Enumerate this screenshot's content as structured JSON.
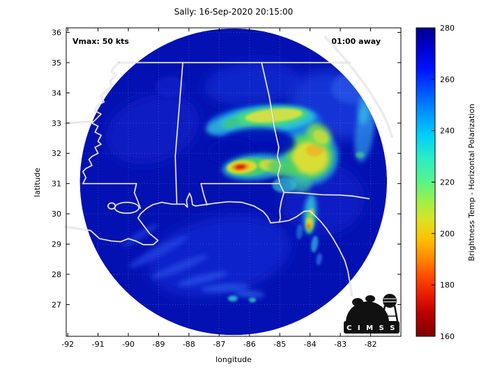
{
  "title": "Sally: 16-Sep-2020 20:15:00",
  "chart_data": {
    "type": "heatmap",
    "title": "Sally: 16-Sep-2020 20:15:00",
    "xlabel": "longitude",
    "ylabel": "latitude",
    "xlim": [
      -92.05,
      -81.0
    ],
    "ylim": [
      25.95,
      36.15
    ],
    "x_ticks": [
      -92,
      -91,
      -90,
      -89,
      -88,
      -87,
      -86,
      -85,
      -84,
      -83,
      -82
    ],
    "y_ticks": [
      36,
      35,
      34,
      33,
      32,
      31,
      30,
      29,
      28,
      27
    ],
    "graticule": {
      "step_deg": 1,
      "style": "dotted",
      "color": "#aab0c8",
      "opacity": 0.3
    },
    "storm": {
      "name": "Sally",
      "datetime": "16-Sep-2020 20:15:00",
      "vmax_kts": 50,
      "vmax_label": "Vmax: 50 kts",
      "countdown_label": "01:00 away"
    },
    "colorbar": {
      "label": "Brightness Temp - Horizontal Polarization",
      "ticks": [
        280,
        260,
        240,
        220,
        200,
        180,
        160
      ],
      "range": [
        160,
        280
      ],
      "stops": [
        {
          "t": 0.0,
          "c": "#00008d"
        },
        {
          "t": 0.06,
          "c": "#0000c8"
        },
        {
          "t": 0.13,
          "c": "#0010ff"
        },
        {
          "t": 0.21,
          "c": "#0058ff"
        },
        {
          "t": 0.29,
          "c": "#00a0ff"
        },
        {
          "t": 0.35,
          "c": "#00d0f8"
        },
        {
          "t": 0.42,
          "c": "#28ecc8"
        },
        {
          "t": 0.5,
          "c": "#58f488"
        },
        {
          "t": 0.56,
          "c": "#9cf04c"
        },
        {
          "t": 0.62,
          "c": "#d8e428"
        },
        {
          "t": 0.68,
          "c": "#fcc400"
        },
        {
          "t": 0.74,
          "c": "#ff9000"
        },
        {
          "t": 0.8,
          "c": "#ff5000"
        },
        {
          "t": 0.87,
          "c": "#e81800"
        },
        {
          "t": 0.93,
          "c": "#b40000"
        },
        {
          "t": 1.0,
          "c": "#7f0000"
        }
      ]
    },
    "swath": {
      "center_lon": -86.53,
      "center_lat": 31.06,
      "radius_deg": 5.07,
      "base_color": "#0411b2"
    },
    "features": [
      {
        "lon": -89.2,
        "lat": 32.8,
        "rx": 1.6,
        "ry": 1.1,
        "rot": -20,
        "color": "#0a1cc4",
        "opacity": 0.9,
        "soft": "l"
      },
      {
        "lon": -87.0,
        "lat": 28.6,
        "rx": 2.4,
        "ry": 1.3,
        "rot": -12,
        "color": "#0e22cc",
        "opacity": 0.9,
        "soft": "l"
      },
      {
        "lon": -83.6,
        "lat": 30.5,
        "rx": 1.4,
        "ry": 1.2,
        "rot": 0,
        "color": "#0c1ec6",
        "opacity": 0.85,
        "soft": "l"
      },
      {
        "lon": -85.9,
        "lat": 34.3,
        "rx": 1.6,
        "ry": 0.7,
        "rot": -5,
        "color": "#1128d0",
        "opacity": 0.85,
        "soft": "l"
      },
      {
        "lon": -83.2,
        "lat": 33.6,
        "rx": 1.5,
        "ry": 1.1,
        "rot": 15,
        "color": "#1b38da",
        "opacity": 0.9,
        "soft": "l"
      },
      {
        "lon": -82.6,
        "lat": 34.15,
        "rx": 0.7,
        "ry": 0.5,
        "rot": 0,
        "color": "#2a5ae8",
        "opacity": 0.7,
        "soft": "m"
      },
      {
        "lon": -82.2,
        "lat": 32.7,
        "rx": 0.3,
        "ry": 1.0,
        "rot": 8,
        "color": "#2e9ae8",
        "opacity": 0.7,
        "soft": "m"
      },
      {
        "lon": -82.25,
        "lat": 33.4,
        "rx": 0.18,
        "ry": 0.45,
        "rot": 0,
        "color": "#35c8e8",
        "opacity": 0.6,
        "soft": "m"
      },
      {
        "lon": -88.6,
        "lat": 34.2,
        "rx": 0.5,
        "ry": 0.35,
        "rot": 0,
        "color": "#0d1fc6",
        "opacity": 0.8,
        "soft": "m"
      },
      {
        "lon": -89.0,
        "lat": 28.75,
        "rx": 1.1,
        "ry": 0.16,
        "rot": -28,
        "color": "#1f3fe0",
        "opacity": 0.85,
        "soft": "m"
      },
      {
        "lon": -88.3,
        "lat": 28.25,
        "rx": 1.0,
        "ry": 0.14,
        "rot": -22,
        "color": "#2448e4",
        "opacity": 0.8,
        "soft": "m"
      },
      {
        "lon": -87.55,
        "lat": 27.85,
        "rx": 0.85,
        "ry": 0.13,
        "rot": -14,
        "color": "#2850e8",
        "opacity": 0.8,
        "soft": "m"
      },
      {
        "lon": -86.8,
        "lat": 27.55,
        "rx": 0.8,
        "ry": 0.13,
        "rot": -4,
        "color": "#2a55ea",
        "opacity": 0.75,
        "soft": "m"
      },
      {
        "lon": -89.6,
        "lat": 29.3,
        "rx": 0.7,
        "ry": 0.12,
        "rot": -32,
        "color": "#1c38d8",
        "opacity": 0.8,
        "soft": "m"
      },
      {
        "lon": -86.0,
        "lat": 27.35,
        "rx": 0.5,
        "ry": 0.12,
        "rot": 4,
        "color": "#2f62ee",
        "opacity": 0.7,
        "soft": "m"
      },
      {
        "lon": -86.55,
        "lat": 27.2,
        "rx": 0.16,
        "ry": 0.1,
        "rot": 0,
        "color": "#2fc4d8",
        "opacity": 0.85,
        "soft": "s"
      },
      {
        "lon": -85.9,
        "lat": 27.15,
        "rx": 0.12,
        "ry": 0.08,
        "rot": 0,
        "color": "#38d0c8",
        "opacity": 0.8,
        "soft": "s"
      },
      {
        "lon": -85.5,
        "lat": 33.0,
        "rx": 1.9,
        "ry": 0.6,
        "rot": -3,
        "color": "#1368e8",
        "opacity": 0.85,
        "soft": "m"
      },
      {
        "lon": -85.4,
        "lat": 33.1,
        "rx": 1.6,
        "ry": 0.45,
        "rot": -4,
        "color": "#28c4e0",
        "opacity": 0.9,
        "soft": "m"
      },
      {
        "lon": -85.3,
        "lat": 33.2,
        "rx": 1.25,
        "ry": 0.32,
        "rot": -5,
        "color": "#4ade6e",
        "opacity": 0.85,
        "soft": "m"
      },
      {
        "lon": -85.2,
        "lat": 33.25,
        "rx": 0.95,
        "ry": 0.22,
        "rot": -5,
        "color": "#e6e23c",
        "opacity": 0.85,
        "soft": "s"
      },
      {
        "lon": -86.9,
        "lat": 32.9,
        "rx": 0.55,
        "ry": 0.25,
        "rot": -15,
        "color": "#2fb8d8",
        "opacity": 0.8,
        "soft": "m"
      },
      {
        "lon": -86.6,
        "lat": 33.0,
        "rx": 0.3,
        "ry": 0.16,
        "rot": -15,
        "color": "#3fc878",
        "opacity": 0.75,
        "soft": "s"
      },
      {
        "lon": -84.05,
        "lat": 31.9,
        "rx": 1.0,
        "ry": 0.95,
        "rot": 0,
        "color": "#1e9ade",
        "opacity": 0.85,
        "soft": "m"
      },
      {
        "lon": -84.05,
        "lat": 31.88,
        "rx": 0.82,
        "ry": 0.75,
        "rot": 0,
        "color": "#55d85a",
        "opacity": 0.9,
        "soft": "m"
      },
      {
        "lon": -84.0,
        "lat": 31.85,
        "rx": 0.6,
        "ry": 0.55,
        "rot": 0,
        "color": "#e8e030",
        "opacity": 0.9,
        "soft": "m"
      },
      {
        "lon": -83.85,
        "lat": 32.1,
        "rx": 0.28,
        "ry": 0.2,
        "rot": 0,
        "color": "#f0b020",
        "opacity": 0.8,
        "soft": "s"
      },
      {
        "lon": -83.7,
        "lat": 32.6,
        "rx": 0.45,
        "ry": 0.35,
        "rot": 40,
        "color": "#7ade50",
        "opacity": 0.85,
        "soft": "m"
      },
      {
        "lon": -83.65,
        "lat": 32.55,
        "rx": 0.28,
        "ry": 0.2,
        "rot": 40,
        "color": "#e0dc38",
        "opacity": 0.7,
        "soft": "s"
      },
      {
        "lon": -85.7,
        "lat": 32.35,
        "rx": 1.2,
        "ry": 0.5,
        "rot": 0,
        "color": "#0411b2",
        "opacity": 0.9,
        "soft": "m"
      },
      {
        "lon": -86.6,
        "lat": 32.05,
        "rx": 0.8,
        "ry": 0.45,
        "rot": 0,
        "color": "#0411b2",
        "opacity": 0.8,
        "soft": "m"
      },
      {
        "lon": -85.8,
        "lat": 31.55,
        "rx": 1.1,
        "ry": 0.42,
        "rot": -5,
        "color": "#28b8d8",
        "opacity": 0.85,
        "soft": "m"
      },
      {
        "lon": -86.0,
        "lat": 31.55,
        "rx": 0.75,
        "ry": 0.3,
        "rot": -5,
        "color": "#48d45f",
        "opacity": 0.9,
        "soft": "s"
      },
      {
        "lon": -86.25,
        "lat": 31.55,
        "rx": 0.5,
        "ry": 0.22,
        "rot": -5,
        "color": "#ecd828",
        "opacity": 0.9,
        "soft": "s"
      },
      {
        "lon": -86.3,
        "lat": 31.55,
        "rx": 0.28,
        "ry": 0.12,
        "rot": -5,
        "color": "#f08614",
        "opacity": 0.9,
        "soft": "s"
      },
      {
        "lon": -86.3,
        "lat": 31.55,
        "rx": 0.16,
        "ry": 0.065,
        "rot": -5,
        "color": "#cc1800",
        "opacity": 0.95,
        "soft": "s"
      },
      {
        "lon": -85.3,
        "lat": 31.6,
        "rx": 0.4,
        "ry": 0.2,
        "rot": 5,
        "color": "#e6dc30",
        "opacity": 0.8,
        "soft": "s"
      },
      {
        "lon": -84.9,
        "lat": 31.5,
        "rx": 0.5,
        "ry": 0.28,
        "rot": 10,
        "color": "#4ecf66",
        "opacity": 0.8,
        "soft": "m"
      },
      {
        "lon": -84.3,
        "lat": 31.0,
        "rx": 0.35,
        "ry": 0.3,
        "rot": 0,
        "color": "#3cc4a0",
        "opacity": 0.7,
        "soft": "m"
      },
      {
        "lon": -84.85,
        "lat": 30.95,
        "rx": 0.4,
        "ry": 0.25,
        "rot": 0,
        "color": "#34c0cf",
        "opacity": 0.7,
        "soft": "s"
      },
      {
        "lon": -84.0,
        "lat": 30.0,
        "rx": 0.2,
        "ry": 0.65,
        "rot": 5,
        "color": "#2cc0e0",
        "opacity": 0.9,
        "soft": "m"
      },
      {
        "lon": -84.0,
        "lat": 29.75,
        "rx": 0.14,
        "ry": 0.4,
        "rot": 5,
        "color": "#44d070",
        "opacity": 0.85,
        "soft": "s"
      },
      {
        "lon": -84.02,
        "lat": 29.7,
        "rx": 0.11,
        "ry": 0.2,
        "rot": 0,
        "color": "#ecd028",
        "opacity": 0.9,
        "soft": "s"
      },
      {
        "lon": -84.05,
        "lat": 29.58,
        "rx": 0.07,
        "ry": 0.1,
        "rot": 0,
        "color": "#f07010",
        "opacity": 0.85,
        "soft": "s"
      },
      {
        "lon": -83.95,
        "lat": 30.05,
        "rx": 0.08,
        "ry": 0.12,
        "rot": 0,
        "color": "#e8cc30",
        "opacity": 0.8,
        "soft": "s"
      },
      {
        "lon": -83.85,
        "lat": 29.0,
        "rx": 0.11,
        "ry": 0.28,
        "rot": 8,
        "color": "#2fa8e0",
        "opacity": 0.8,
        "soft": "s"
      },
      {
        "lon": -83.7,
        "lat": 28.5,
        "rx": 0.09,
        "ry": 0.2,
        "rot": 10,
        "color": "#2f7de8",
        "opacity": 0.7,
        "soft": "s"
      },
      {
        "lon": -84.35,
        "lat": 29.4,
        "rx": 0.1,
        "ry": 0.25,
        "rot": 5,
        "color": "#2a90dc",
        "opacity": 0.6,
        "soft": "s"
      },
      {
        "lon": -82.35,
        "lat": 31.95,
        "rx": 0.14,
        "ry": 0.1,
        "rot": 0,
        "color": "#3fcf8a",
        "opacity": 0.75,
        "soft": "s"
      }
    ]
  },
  "map": {
    "outline_color": "#ffffff",
    "halo_color": "#9a9a9a",
    "polylines": [
      [
        [
          -90.31,
          35.0
        ],
        [
          -88.2,
          35.0
        ],
        [
          -85.6,
          35.0
        ],
        [
          -84.3,
          35.0
        ],
        [
          -82.7,
          35.0
        ]
      ],
      [
        [
          -90.31,
          35.0
        ],
        [
          -90.5,
          34.8
        ],
        [
          -90.55,
          34.7
        ],
        [
          -90.4,
          34.6
        ],
        [
          -90.6,
          34.4
        ],
        [
          -90.55,
          34.2
        ],
        [
          -90.7,
          34.1
        ],
        [
          -90.9,
          33.9
        ],
        [
          -90.8,
          33.7
        ],
        [
          -91.0,
          33.6
        ],
        [
          -91.1,
          33.4
        ],
        [
          -90.9,
          33.3
        ],
        [
          -91.1,
          33.1
        ],
        [
          -91.2,
          33.0
        ],
        [
          -91.0,
          32.9
        ],
        [
          -91.1,
          32.7
        ],
        [
          -90.9,
          32.6
        ],
        [
          -91.0,
          32.4
        ],
        [
          -90.9,
          32.3
        ],
        [
          -91.1,
          32.2
        ],
        [
          -91.0,
          32.0
        ],
        [
          -91.2,
          31.9
        ],
        [
          -91.3,
          31.8
        ],
        [
          -91.2,
          31.6
        ],
        [
          -91.4,
          31.5
        ],
        [
          -91.5,
          31.4
        ],
        [
          -91.4,
          31.2
        ],
        [
          -91.5,
          31.0
        ]
      ],
      [
        [
          -92.1,
          33.0
        ],
        [
          -91.15,
          33.05
        ]
      ],
      [
        [
          -91.5,
          31.0
        ],
        [
          -90.5,
          31.0
        ],
        [
          -89.73,
          31.0
        ],
        [
          -89.8,
          30.7
        ],
        [
          -89.68,
          30.4
        ],
        [
          -89.6,
          30.18
        ]
      ],
      [
        [
          -88.2,
          35.0
        ],
        [
          -88.45,
          31.9
        ],
        [
          -88.4,
          30.35
        ]
      ],
      [
        [
          -85.6,
          35.0
        ],
        [
          -85.35,
          33.9
        ],
        [
          -85.18,
          32.87
        ],
        [
          -85.1,
          32.5
        ],
        [
          -85.03,
          32.2
        ],
        [
          -85.08,
          31.9
        ],
        [
          -84.98,
          31.6
        ],
        [
          -85.06,
          31.3
        ],
        [
          -85.0,
          31.0
        ]
      ],
      [
        [
          -85.0,
          31.0
        ],
        [
          -86.5,
          31.0
        ],
        [
          -87.6,
          31.0
        ],
        [
          -87.5,
          30.6
        ],
        [
          -87.4,
          30.3
        ]
      ],
      [
        [
          -85.0,
          31.0
        ],
        [
          -84.93,
          30.85
        ],
        [
          -84.86,
          30.71
        ],
        [
          -84.3,
          30.69
        ],
        [
          -83.6,
          30.63
        ],
        [
          -83.0,
          30.62
        ],
        [
          -82.6,
          30.59
        ],
        [
          -82.05,
          30.5
        ]
      ],
      [
        [
          -84.86,
          30.71
        ],
        [
          -84.95,
          30.4
        ],
        [
          -85.0,
          30.1
        ],
        [
          -84.98,
          29.85
        ],
        [
          -85.02,
          29.73
        ]
      ],
      [
        [
          -83.5,
          35.85
        ],
        [
          -83.0,
          35.3
        ],
        [
          -82.55,
          34.75
        ],
        [
          -82.1,
          34.15
        ],
        [
          -81.7,
          33.5
        ],
        [
          -81.45,
          33.0
        ],
        [
          -81.3,
          32.55
        ]
      ],
      [
        [
          -92.1,
          29.58
        ],
        [
          -91.6,
          29.5
        ],
        [
          -91.25,
          29.45
        ],
        [
          -90.95,
          29.18
        ],
        [
          -90.55,
          29.1
        ],
        [
          -90.25,
          29.08
        ],
        [
          -90.0,
          29.18
        ],
        [
          -89.75,
          29.1
        ],
        [
          -89.5,
          28.98
        ],
        [
          -89.18,
          28.98
        ],
        [
          -89.02,
          29.12
        ],
        [
          -89.3,
          29.35
        ],
        [
          -89.5,
          29.62
        ],
        [
          -89.68,
          29.86
        ],
        [
          -89.6,
          30.0
        ],
        [
          -89.4,
          30.18
        ],
        [
          -89.2,
          30.3
        ],
        [
          -88.9,
          30.38
        ],
        [
          -88.55,
          30.32
        ],
        [
          -88.15,
          30.32
        ],
        [
          -88.05,
          30.22
        ],
        [
          -88.08,
          30.45
        ],
        [
          -87.98,
          30.68
        ],
        [
          -87.92,
          30.55
        ],
        [
          -87.88,
          30.3
        ],
        [
          -87.78,
          30.26
        ],
        [
          -87.5,
          30.3
        ],
        [
          -87.15,
          30.35
        ],
        [
          -86.7,
          30.4
        ],
        [
          -86.25,
          30.38
        ],
        [
          -85.85,
          30.26
        ],
        [
          -85.55,
          30.08
        ],
        [
          -85.4,
          29.9
        ],
        [
          -85.3,
          29.7
        ],
        [
          -85.0,
          29.73
        ],
        [
          -84.7,
          29.78
        ],
        [
          -84.45,
          29.9
        ],
        [
          -84.2,
          30.08
        ],
        [
          -84.0,
          30.1
        ],
        [
          -83.85,
          29.95
        ],
        [
          -83.65,
          29.75
        ],
        [
          -83.45,
          29.5
        ],
        [
          -83.25,
          29.2
        ],
        [
          -83.05,
          28.85
        ],
        [
          -82.85,
          28.45
        ],
        [
          -82.75,
          28.1
        ],
        [
          -82.68,
          27.7
        ],
        [
          -82.62,
          27.3
        ]
      ]
    ],
    "lakes": [
      {
        "lon": -90.05,
        "lat": 30.2,
        "rx": 0.4,
        "ry": 0.18
      },
      {
        "lon": -90.55,
        "lat": 30.26,
        "rx": 0.12,
        "ry": 0.1
      }
    ]
  },
  "logo": {
    "text": "C I M S S"
  }
}
